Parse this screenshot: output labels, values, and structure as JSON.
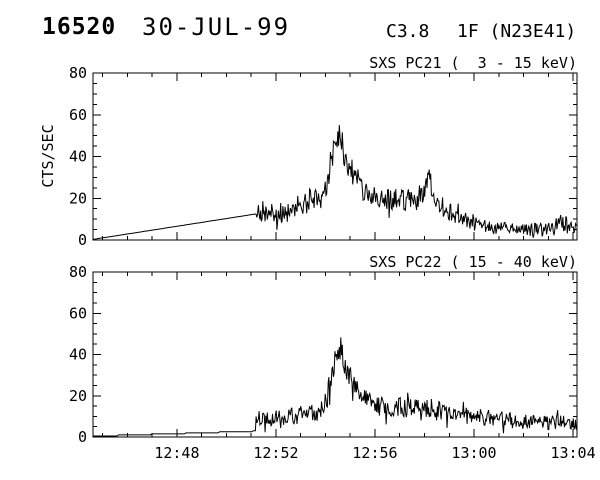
{
  "header": {
    "event_number": "16520",
    "date": "30-JUL-99",
    "goes_class": "C3.8",
    "importance_location": "1F (N23E41)"
  },
  "colors": {
    "foreground": "#000000",
    "background": "#ffffff"
  },
  "chart_data": [
    {
      "type": "line",
      "title": "SXS PC21 (  3 - 15 keV)",
      "ylabel": "CTS/SEC",
      "xlabel": "",
      "x_unit": "time UT, minutes after 12:00",
      "xlim": [
        44.61,
        64.16
      ],
      "ylim": [
        0,
        80
      ],
      "grid": false,
      "legend": "none",
      "x_major_ticks": [
        "12:48",
        "12:52",
        "12:56",
        "13:00",
        "13:04"
      ],
      "x_major_tick_minutes": [
        48,
        52,
        56,
        60,
        64
      ],
      "x_minor_step_minutes": 1,
      "y_major_ticks": [
        0,
        20,
        40,
        60,
        80
      ],
      "y_minor_step": 5,
      "show_x_labels": false,
      "peak": {
        "time": "12:54.5",
        "value_cts_per_sec": 58
      },
      "pre_event_line": [
        [
          44.61,
          0.3
        ],
        [
          51.2,
          12.5
        ]
      ],
      "pre_event_step": 0,
      "noisy_envelope": [
        [
          51.2,
          13,
          5
        ],
        [
          52.4,
          13,
          5
        ],
        [
          52.9,
          14,
          5
        ],
        [
          53.3,
          18,
          6
        ],
        [
          53.55,
          21,
          6
        ],
        [
          53.8,
          17,
          5
        ],
        [
          54.05,
          27,
          7
        ],
        [
          54.3,
          42,
          8
        ],
        [
          54.5,
          50,
          8
        ],
        [
          54.75,
          44,
          8
        ],
        [
          55.0,
          34,
          7
        ],
        [
          55.35,
          27,
          6
        ],
        [
          55.7,
          23,
          6
        ],
        [
          56.2,
          20,
          5.5
        ],
        [
          57.0,
          19,
          5.5
        ],
        [
          57.7,
          20,
          6
        ],
        [
          58.1,
          24,
          7
        ],
        [
          58.2,
          31,
          6
        ],
        [
          58.4,
          19,
          5
        ],
        [
          58.8,
          15,
          5
        ],
        [
          59.3,
          11,
          4
        ],
        [
          60.0,
          8,
          3.5
        ],
        [
          60.8,
          6,
          3
        ],
        [
          62.0,
          5,
          3
        ],
        [
          63.0,
          5,
          3
        ],
        [
          63.55,
          8,
          5.5
        ],
        [
          63.85,
          6,
          3.5
        ],
        [
          64.16,
          5,
          3
        ]
      ]
    },
    {
      "type": "line",
      "title": "SXS PC22 ( 15 - 40 keV)",
      "ylabel": "",
      "xlabel": "",
      "x_unit": "time UT, minutes after 12:00",
      "xlim": [
        44.61,
        64.16
      ],
      "ylim": [
        0,
        80
      ],
      "grid": false,
      "legend": "none",
      "x_major_ticks": [
        "12:48",
        "12:52",
        "12:56",
        "13:00",
        "13:04"
      ],
      "x_major_tick_minutes": [
        48,
        52,
        56,
        60,
        64
      ],
      "x_minor_step_minutes": 1,
      "y_major_ticks": [
        0,
        20,
        40,
        60,
        80
      ],
      "y_minor_step": 5,
      "show_x_labels": true,
      "peak": {
        "time": "12:54.6",
        "value_cts_per_sec": 50
      },
      "pre_event_line": [
        [
          44.61,
          0.4
        ],
        [
          51.2,
          2.8
        ]
      ],
      "pre_event_step": 0.5,
      "noisy_envelope": [
        [
          51.2,
          9,
          4
        ],
        [
          52.5,
          10,
          4
        ],
        [
          53.3,
          11,
          4.5
        ],
        [
          53.8,
          13,
          5
        ],
        [
          54.1,
          21,
          6
        ],
        [
          54.45,
          39,
          7
        ],
        [
          54.6,
          44,
          7
        ],
        [
          54.85,
          34,
          6
        ],
        [
          55.15,
          25,
          6
        ],
        [
          55.6,
          18,
          5
        ],
        [
          56.1,
          15,
          5
        ],
        [
          56.9,
          14,
          5
        ],
        [
          57.5,
          15,
          5
        ],
        [
          57.9,
          16,
          6
        ],
        [
          58.4,
          13,
          5
        ],
        [
          59.1,
          11,
          4
        ],
        [
          59.9,
          10,
          4
        ],
        [
          60.7,
          9,
          4
        ],
        [
          61.7,
          8,
          4
        ],
        [
          62.7,
          7,
          3.5
        ],
        [
          63.6,
          7,
          4
        ],
        [
          64.16,
          6,
          3
        ]
      ]
    }
  ]
}
